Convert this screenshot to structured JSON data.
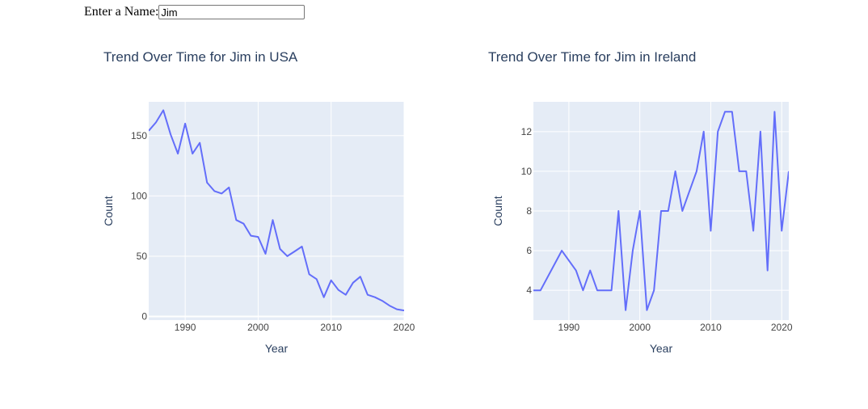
{
  "form": {
    "label": "Enter a Name:",
    "name_value": "Jim"
  },
  "colors": {
    "plot_bg": "#e5ecf6",
    "grid": "#ffffff",
    "line": "#636efa",
    "text": "#2a3f5f",
    "tick": "#444444"
  },
  "chart_data": [
    {
      "type": "line",
      "title": "Trend Over Time for Jim in USA",
      "xlabel": "Year",
      "ylabel": "Count",
      "xlim": [
        1985,
        2020
      ],
      "ylim": [
        -3,
        178
      ],
      "xticks": [
        1990,
        2000,
        2010,
        2020
      ],
      "yticks": [
        0,
        50,
        100,
        150
      ],
      "grid": true,
      "legend": "none",
      "x": [
        1985,
        1986,
        1987,
        1988,
        1989,
        1990,
        1991,
        1992,
        1993,
        1994,
        1995,
        1996,
        1997,
        1998,
        1999,
        2000,
        2001,
        2002,
        2003,
        2004,
        2005,
        2006,
        2007,
        2008,
        2009,
        2010,
        2011,
        2012,
        2013,
        2014,
        2015,
        2016,
        2017,
        2018,
        2019,
        2020
      ],
      "y": [
        154,
        161,
        171,
        151,
        135,
        160,
        135,
        144,
        111,
        104,
        102,
        107,
        80,
        77,
        67,
        66,
        52,
        80,
        56,
        50,
        54,
        58,
        35,
        31,
        16,
        30,
        22,
        18,
        28,
        33,
        18,
        16,
        13,
        9,
        6,
        5
      ]
    },
    {
      "type": "line",
      "title": "Trend Over Time for Jim in Ireland",
      "xlabel": "Year",
      "ylabel": "Count",
      "xlim": [
        1985,
        2021
      ],
      "ylim": [
        2.5,
        13.5
      ],
      "xticks": [
        1990,
        2000,
        2010,
        2020
      ],
      "yticks": [
        4,
        6,
        8,
        10,
        12
      ],
      "grid": true,
      "legend": "none",
      "x": [
        1985,
        1986,
        1989,
        1991,
        1992,
        1993,
        1994,
        1996,
        1997,
        1998,
        1999,
        2000,
        2001,
        2002,
        2003,
        2004,
        2005,
        2006,
        2008,
        2009,
        2010,
        2011,
        2012,
        2013,
        2014,
        2015,
        2016,
        2017,
        2018,
        2019,
        2020,
        2021
      ],
      "y": [
        4,
        4,
        6,
        5,
        4,
        5,
        4,
        4,
        8,
        3,
        6,
        8,
        3,
        4,
        8,
        8,
        10,
        8,
        10,
        12,
        7,
        12,
        13,
        13,
        10,
        10,
        7,
        12,
        5,
        13,
        7,
        10
      ]
    }
  ]
}
